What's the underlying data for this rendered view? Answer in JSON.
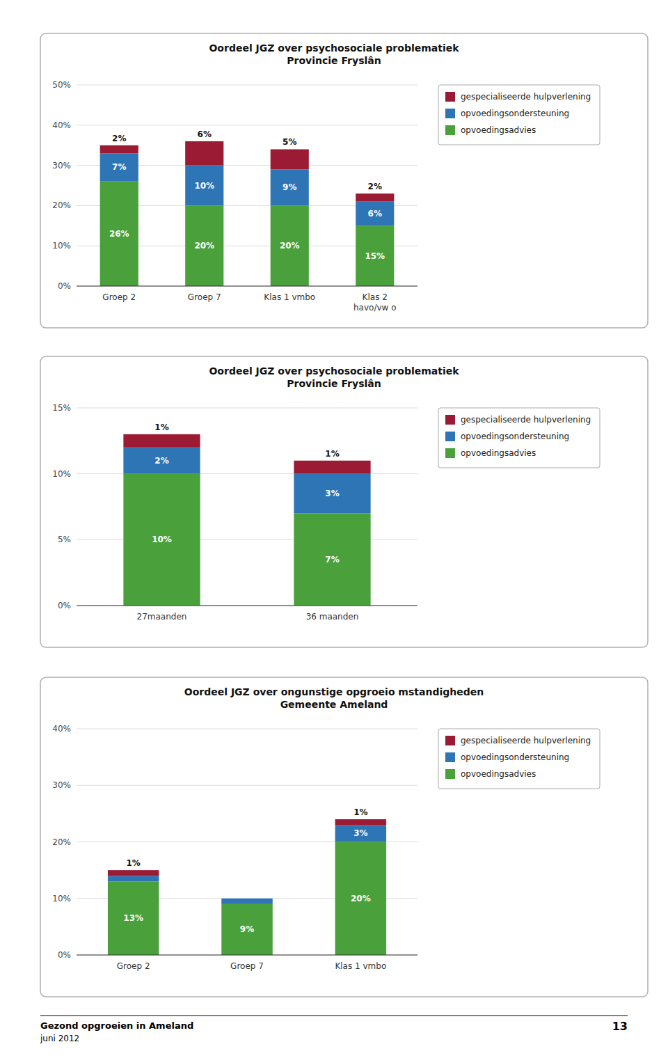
{
  "chart_data": [
    {
      "type": "bar",
      "stacked": true,
      "title": "Oordeel JGZ over psychosociale problematiek\nProvincie Fryslân",
      "categories": [
        "Groep 2",
        "Groep 7",
        "Klas 1 vmbo",
        "Klas 2\nhavo/vw o"
      ],
      "series": [
        {
          "name": "opvoedingsadvies",
          "color": "#4aa03a",
          "values": [
            26,
            20,
            20,
            15
          ],
          "value_labels": [
            "26%",
            "20%",
            "20%",
            "15%"
          ]
        },
        {
          "name": "opvoedingsondersteuning",
          "color": "#2e75b6",
          "values": [
            7,
            10,
            9,
            6
          ],
          "value_labels": [
            "7%",
            "10%",
            "9%",
            "6%"
          ]
        },
        {
          "name": "gespecialiseerde hulpverlening",
          "color": "#9b1b34",
          "values": [
            2,
            6,
            5,
            2
          ],
          "value_labels": [
            "2%",
            "6%",
            "5%",
            "2%"
          ]
        }
      ],
      "ylim": [
        0,
        50
      ],
      "yticks": [
        {
          "value": 0,
          "label": "0%"
        },
        {
          "value": 10,
          "label": "10%"
        },
        {
          "value": 20,
          "label": "20%"
        },
        {
          "value": 30,
          "label": "30%"
        },
        {
          "value": 40,
          "label": "40%"
        },
        {
          "value": 50,
          "label": "50%"
        }
      ],
      "grid": true,
      "legend": "right",
      "data_labels": true
    },
    {
      "type": "bar",
      "stacked": true,
      "title": "Oordeel JGZ over psychosociale problematiek\nProvincie Fryslân",
      "categories": [
        "27maanden",
        "36 maanden"
      ],
      "series": [
        {
          "name": "opvoedingsadvies",
          "color": "#4aa03a",
          "values": [
            10,
            7
          ],
          "value_labels": [
            "10%",
            "7%"
          ]
        },
        {
          "name": "opvoedingsondersteuning",
          "color": "#2e75b6",
          "values": [
            2,
            3
          ],
          "value_labels": [
            "2%",
            "3%"
          ]
        },
        {
          "name": "gespecialiseerde hulpverlening",
          "color": "#9b1b34",
          "values": [
            1,
            1
          ],
          "value_labels": [
            "1%",
            "1%"
          ]
        }
      ],
      "ylim": [
        0,
        15
      ],
      "yticks": [
        {
          "value": 0,
          "label": "0%"
        },
        {
          "value": 5,
          "label": "5%"
        },
        {
          "value": 10,
          "label": "10%"
        },
        {
          "value": 15,
          "label": "15%"
        }
      ],
      "grid": true,
      "legend": "right",
      "data_labels": true
    },
    {
      "type": "bar",
      "stacked": true,
      "title": "Oordeel JGZ over ongunstige opgroeio mstandigheden\nGemeente Ameland",
      "categories": [
        "Groep 2",
        "Groep 7",
        "Klas 1 vmbo"
      ],
      "series": [
        {
          "name": "opvoedingsadvies",
          "color": "#4aa03a",
          "values": [
            13,
            9,
            20
          ],
          "value_labels": [
            "13%",
            "9%",
            "20%"
          ]
        },
        {
          "name": "opvoedingsondersteuning",
          "color": "#2e75b6",
          "values": [
            1,
            1,
            3
          ],
          "value_labels": [
            null,
            null,
            "3%"
          ]
        },
        {
          "name": "gespecialiseerde hulpverlening",
          "color": "#9b1b34",
          "values": [
            1,
            0,
            1
          ],
          "value_labels": [
            "1%",
            null,
            "1%"
          ]
        }
      ],
      "ylim": [
        0,
        40
      ],
      "yticks": [
        {
          "value": 0,
          "label": "0%"
        },
        {
          "value": 10,
          "label": "10%"
        },
        {
          "value": 20,
          "label": "20%"
        },
        {
          "value": 30,
          "label": "30%"
        },
        {
          "value": 40,
          "label": "40%"
        }
      ],
      "grid": true,
      "legend": "right",
      "data_labels": true
    }
  ],
  "footer": {
    "title": "Gezond opgroeien in Ameland",
    "subtitle": "juni 2012",
    "page_number": "13"
  }
}
